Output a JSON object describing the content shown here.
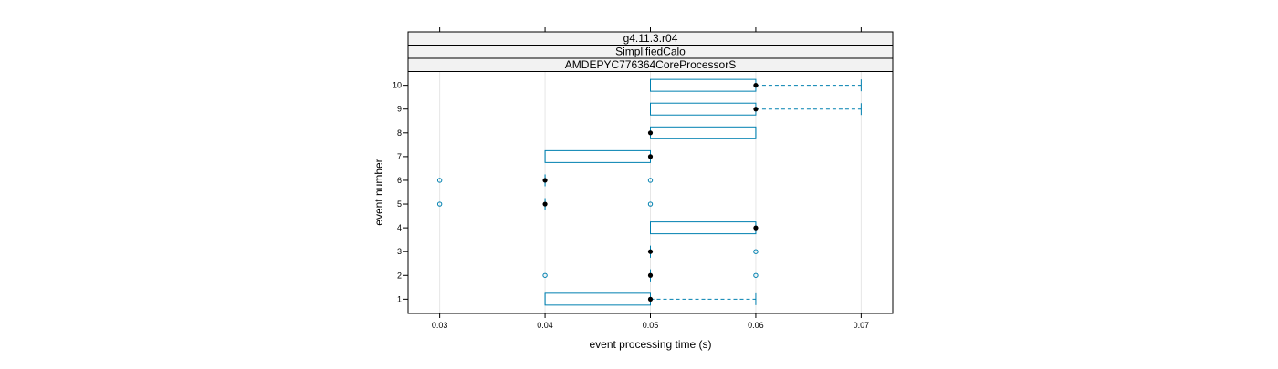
{
  "chart_data": {
    "type": "boxplot",
    "strips": [
      "g4.11.3.r04",
      "SimplifiedCalo",
      "AMDEPYC776364CoreProcessorS"
    ],
    "xlabel": "event processing time (s)",
    "ylabel": "event number",
    "xlim": [
      0.027,
      0.073
    ],
    "ylim": [
      0.4,
      10.6
    ],
    "x_ticks": [
      0.03,
      0.04,
      0.05,
      0.06,
      0.07
    ],
    "x_tick_labels": [
      "0.03",
      "0.04",
      "0.05",
      "0.06",
      "0.07"
    ],
    "y_ticks": [
      1,
      2,
      3,
      4,
      5,
      6,
      7,
      8,
      9,
      10
    ],
    "y_tick_labels": [
      "1",
      "2",
      "3",
      "4",
      "5",
      "6",
      "7",
      "8",
      "9",
      "10"
    ],
    "grid": true,
    "colors": {
      "box": "#0080b0",
      "median": "#000000",
      "grid": "#e6e6e6",
      "strip_bg": "#f2f2f2"
    },
    "boxes": [
      {
        "event": 1,
        "lower_whisker": 0.04,
        "q1": 0.04,
        "median": 0.05,
        "q3": 0.05,
        "upper_whisker": 0.06,
        "outliers": []
      },
      {
        "event": 2,
        "lower_whisker": 0.05,
        "q1": 0.05,
        "median": 0.05,
        "q3": 0.05,
        "upper_whisker": 0.05,
        "outliers": [
          0.04,
          0.06
        ]
      },
      {
        "event": 3,
        "lower_whisker": 0.05,
        "q1": 0.05,
        "median": 0.05,
        "q3": 0.05,
        "upper_whisker": 0.05,
        "outliers": [
          0.06
        ]
      },
      {
        "event": 4,
        "lower_whisker": 0.05,
        "q1": 0.05,
        "median": 0.06,
        "q3": 0.06,
        "upper_whisker": 0.06,
        "outliers": []
      },
      {
        "event": 5,
        "lower_whisker": 0.04,
        "q1": 0.04,
        "median": 0.04,
        "q3": 0.04,
        "upper_whisker": 0.04,
        "outliers": [
          0.03,
          0.05
        ]
      },
      {
        "event": 6,
        "lower_whisker": 0.04,
        "q1": 0.04,
        "median": 0.04,
        "q3": 0.04,
        "upper_whisker": 0.04,
        "outliers": [
          0.03,
          0.05
        ]
      },
      {
        "event": 7,
        "lower_whisker": 0.04,
        "q1": 0.04,
        "median": 0.05,
        "q3": 0.05,
        "upper_whisker": 0.05,
        "outliers": []
      },
      {
        "event": 8,
        "lower_whisker": 0.05,
        "q1": 0.05,
        "median": 0.05,
        "q3": 0.06,
        "upper_whisker": 0.06,
        "outliers": []
      },
      {
        "event": 9,
        "lower_whisker": 0.05,
        "q1": 0.05,
        "median": 0.06,
        "q3": 0.06,
        "upper_whisker": 0.07,
        "outliers": []
      },
      {
        "event": 10,
        "lower_whisker": 0.05,
        "q1": 0.05,
        "median": 0.06,
        "q3": 0.06,
        "upper_whisker": 0.07,
        "outliers": []
      }
    ]
  }
}
